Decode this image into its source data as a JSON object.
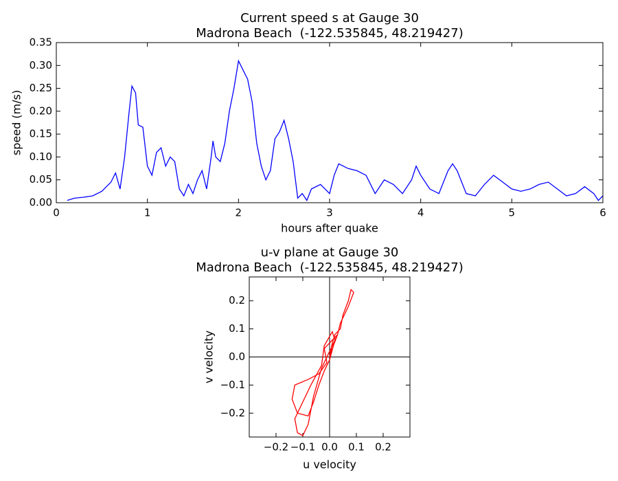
{
  "chart_data": [
    {
      "type": "line",
      "title": "Current speed s at Gauge 30",
      "subtitle": "Madrona Beach  (-122.535845, 48.219427)",
      "xlabel": "hours after quake",
      "ylabel": "speed (m/s)",
      "color": "#0000ff",
      "x": [
        0.12,
        0.2,
        0.3,
        0.4,
        0.5,
        0.6,
        0.65,
        0.7,
        0.75,
        0.8,
        0.83,
        0.87,
        0.9,
        0.95,
        1.0,
        1.05,
        1.1,
        1.15,
        1.2,
        1.25,
        1.3,
        1.35,
        1.4,
        1.45,
        1.5,
        1.55,
        1.6,
        1.65,
        1.7,
        1.72,
        1.75,
        1.8,
        1.85,
        1.9,
        1.95,
        2.0,
        2.05,
        2.1,
        2.15,
        2.2,
        2.25,
        2.3,
        2.35,
        2.4,
        2.45,
        2.5,
        2.55,
        2.6,
        2.65,
        2.7,
        2.75,
        2.8,
        2.9,
        3.0,
        3.05,
        3.1,
        3.2,
        3.3,
        3.4,
        3.5,
        3.6,
        3.7,
        3.8,
        3.9,
        3.95,
        4.0,
        4.1,
        4.2,
        4.3,
        4.35,
        4.4,
        4.5,
        4.6,
        4.7,
        4.8,
        4.9,
        5.0,
        5.1,
        5.2,
        5.3,
        5.4,
        5.5,
        5.6,
        5.7,
        5.8,
        5.9,
        5.95,
        6.0
      ],
      "values": [
        0.005,
        0.01,
        0.012,
        0.015,
        0.025,
        0.045,
        0.065,
        0.03,
        0.1,
        0.2,
        0.255,
        0.24,
        0.17,
        0.165,
        0.08,
        0.06,
        0.11,
        0.12,
        0.08,
        0.1,
        0.09,
        0.03,
        0.015,
        0.04,
        0.02,
        0.05,
        0.07,
        0.03,
        0.1,
        0.135,
        0.1,
        0.09,
        0.13,
        0.2,
        0.25,
        0.31,
        0.29,
        0.27,
        0.22,
        0.13,
        0.08,
        0.05,
        0.07,
        0.14,
        0.155,
        0.18,
        0.14,
        0.09,
        0.01,
        0.02,
        0.005,
        0.03,
        0.04,
        0.02,
        0.06,
        0.085,
        0.075,
        0.07,
        0.06,
        0.02,
        0.05,
        0.04,
        0.02,
        0.05,
        0.08,
        0.06,
        0.03,
        0.02,
        0.07,
        0.085,
        0.07,
        0.02,
        0.015,
        0.04,
        0.06,
        0.045,
        0.03,
        0.025,
        0.03,
        0.04,
        0.045,
        0.03,
        0.015,
        0.02,
        0.035,
        0.02,
        0.005,
        0.015
      ],
      "xlim": [
        0,
        6
      ],
      "xticks": [
        0,
        1,
        2,
        3,
        4,
        5,
        6
      ],
      "ylim": [
        0,
        0.35
      ],
      "yticks": [
        {
          "value": 0,
          "label": "0.00"
        },
        {
          "value": 0.05,
          "label": "0.05"
        },
        {
          "value": 0.1,
          "label": "0.10"
        },
        {
          "value": 0.15,
          "label": "0.15"
        },
        {
          "value": 0.2,
          "label": "0.20"
        },
        {
          "value": 0.25,
          "label": "0.25"
        },
        {
          "value": 0.3,
          "label": "0.30"
        },
        {
          "value": 0.35,
          "label": "0.35"
        }
      ]
    },
    {
      "type": "line",
      "title": "u-v plane at Gauge 30",
      "subtitle": "Madrona Beach  (-122.535845, 48.219427)",
      "xlabel": "u velocity",
      "ylabel": "v velocity",
      "color": "#ff0000",
      "zero_lines": true,
      "x": [
        0,
        0.01,
        0.02,
        0.04,
        0.05,
        0.07,
        0.08,
        0.09,
        0.07,
        0.04,
        0.03,
        0,
        -0.02,
        -0.01,
        -0.04,
        -0.08,
        -0.13,
        -0.14,
        -0.12,
        -0.08,
        -0.06,
        -0.04,
        -0.02,
        0,
        0.02,
        0.01,
        -0.02,
        -0.03,
        -0.07,
        -0.1,
        -0.13,
        -0.12,
        -0.1,
        -0.08,
        -0.06,
        -0.03,
        0,
        0.03,
        0.01,
        0
      ],
      "values": [
        0,
        0.05,
        0.08,
        0.1,
        0.15,
        0.2,
        0.24,
        0.23,
        0.18,
        0.12,
        0.08,
        0.05,
        0.03,
        -0.02,
        -0.06,
        -0.08,
        -0.1,
        -0.15,
        -0.2,
        -0.21,
        -0.16,
        -0.1,
        -0.05,
        -0.01,
        0.06,
        0.09,
        0.04,
        -0.03,
        -0.1,
        -0.16,
        -0.22,
        -0.27,
        -0.28,
        -0.24,
        -0.14,
        -0.04,
        0.02,
        0.08,
        0.03,
        0
      ],
      "xlim": [
        -0.3,
        0.3
      ],
      "xticks": [
        {
          "value": -0.2,
          "label": "−0.2"
        },
        {
          "value": -0.1,
          "label": "−0.1"
        },
        {
          "value": 0,
          "label": "0.0"
        },
        0.1,
        0.2
      ],
      "ylim": [
        -0.285,
        0.285
      ],
      "yticks": [
        {
          "value": -0.2,
          "label": "−0.2"
        },
        {
          "value": -0.1,
          "label": "−0.1"
        },
        {
          "value": 0,
          "label": "0.0"
        },
        0.1,
        0.2
      ]
    }
  ]
}
